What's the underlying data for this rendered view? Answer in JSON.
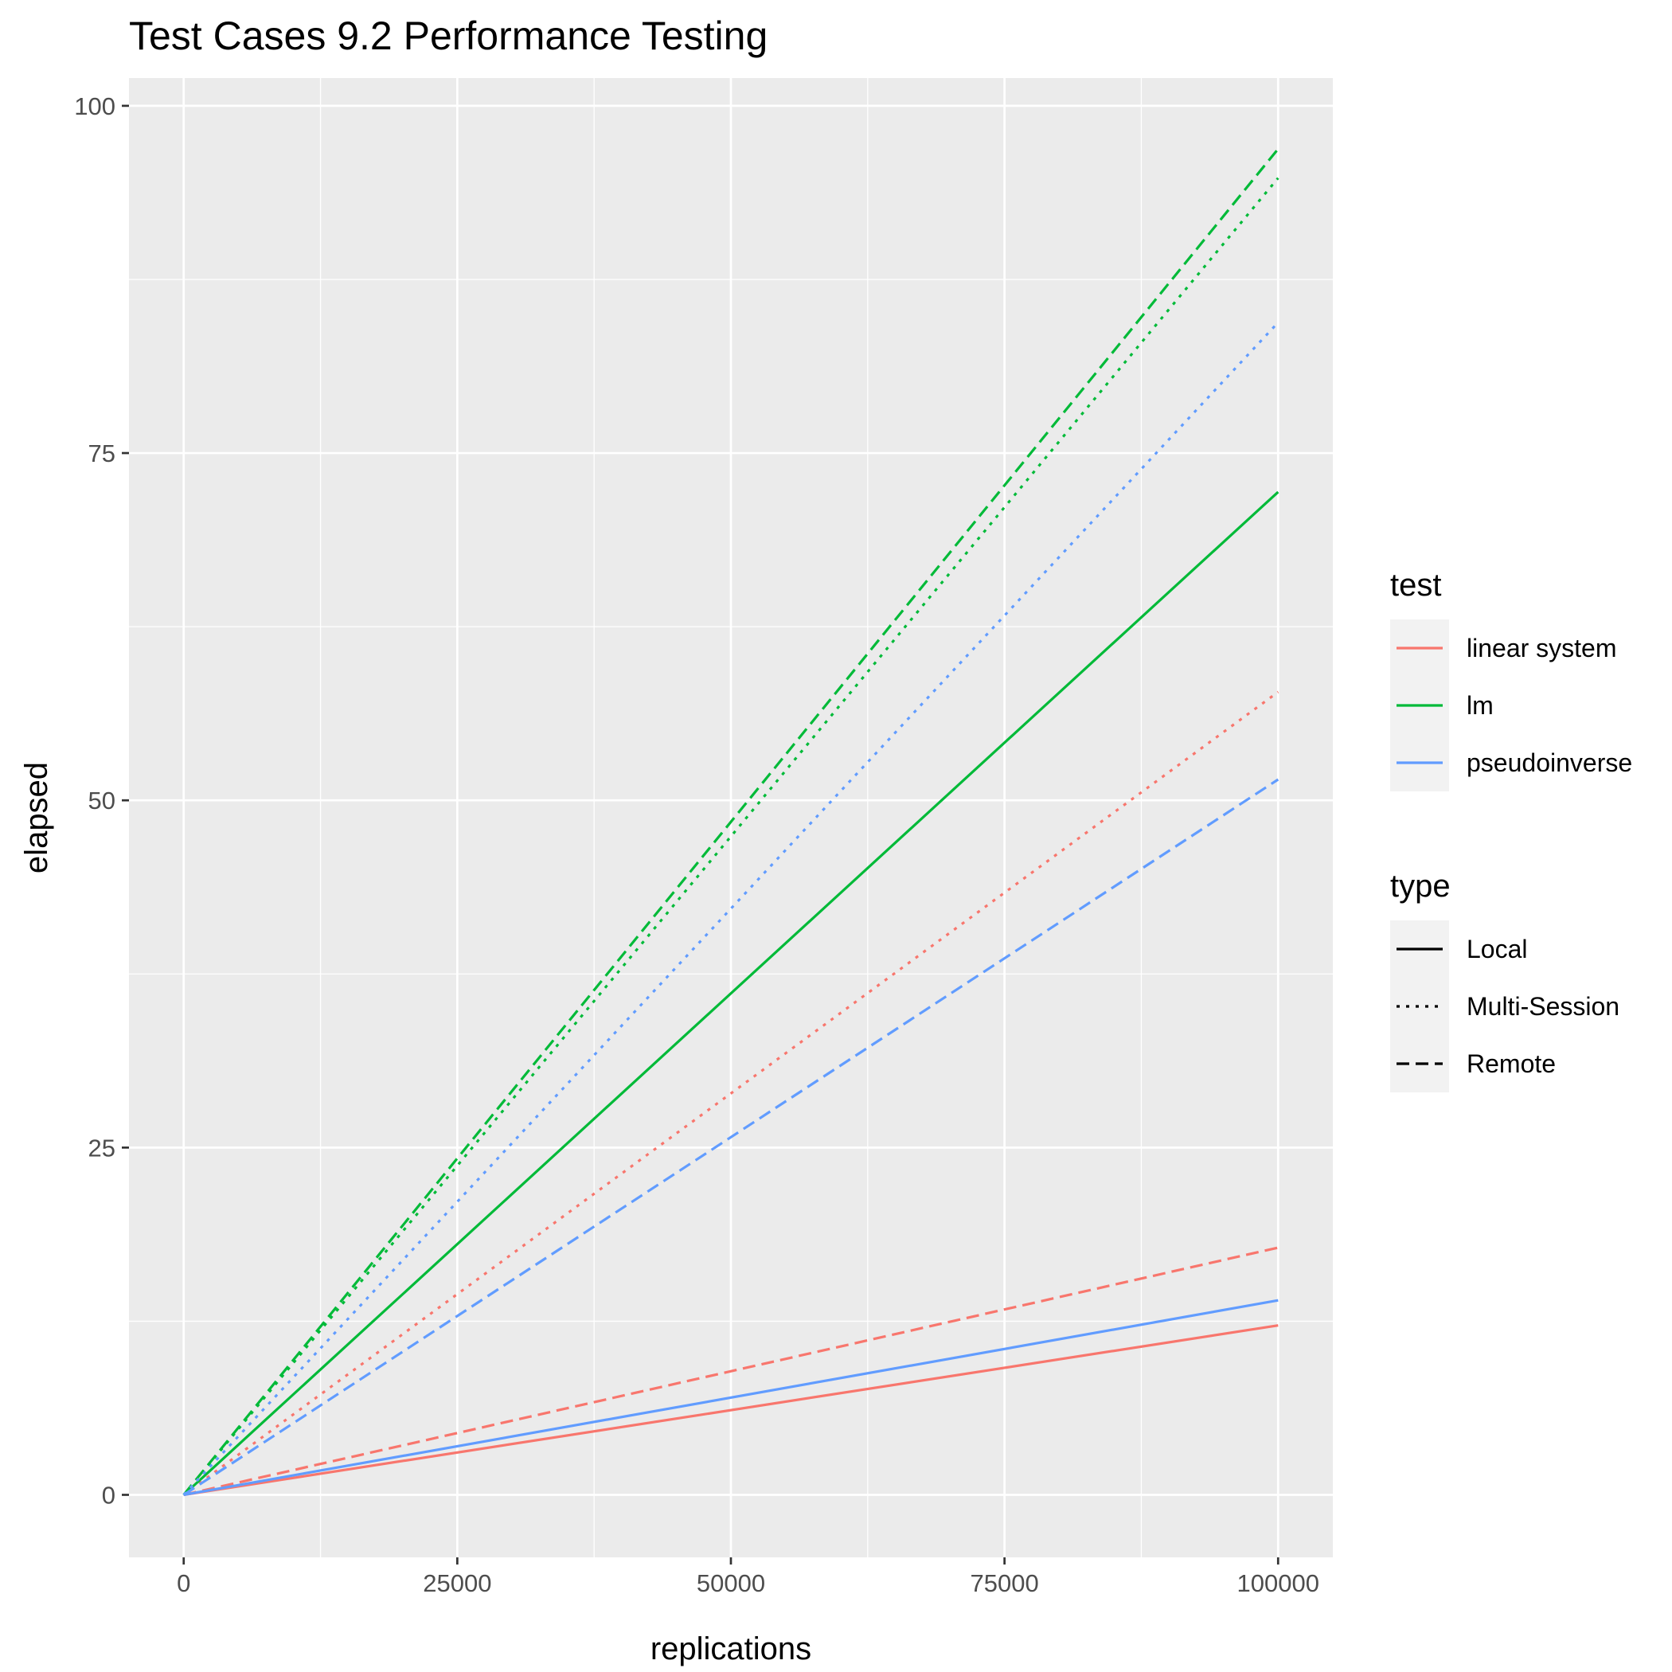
{
  "chart_data": {
    "type": "line",
    "title": "Test Cases 9.2 Performance Testing",
    "xlabel": "replications",
    "ylabel": "elapsed",
    "xlim": [
      -5000,
      105000
    ],
    "ylim": [
      -4.5,
      102
    ],
    "x_ticks": [
      0,
      25000,
      50000,
      75000,
      100000
    ],
    "x_tick_labels": [
      "0",
      "25000",
      "50000",
      "75000",
      "100000"
    ],
    "x_minor_ticks": [
      12500,
      37500,
      62500,
      87500
    ],
    "y_ticks": [
      0,
      25,
      50,
      75,
      100
    ],
    "y_tick_labels": [
      "0",
      "25",
      "50",
      "75",
      "100"
    ],
    "y_minor_ticks": [
      12.5,
      37.5,
      62.5,
      87.5
    ],
    "grid": true,
    "legend_position": "right",
    "legends": [
      {
        "title": "test",
        "kind": "color",
        "entries": [
          {
            "label": "linear system",
            "color": "#F8766D"
          },
          {
            "label": "lm",
            "color": "#00BA38"
          },
          {
            "label": "pseudoinverse",
            "color": "#619CFF"
          }
        ]
      },
      {
        "title": "type",
        "kind": "linetype",
        "entries": [
          {
            "label": "Local",
            "dash": "solid"
          },
          {
            "label": "Multi-Session",
            "dash": "dotted"
          },
          {
            "label": "Remote",
            "dash": "dashed"
          }
        ]
      }
    ],
    "series": [
      {
        "test": "linear system",
        "type": "Local",
        "color": "#F8766D",
        "dash": "solid",
        "x": [
          0,
          100000
        ],
        "y": [
          0,
          12.2
        ]
      },
      {
        "test": "linear system",
        "type": "Multi-Session",
        "color": "#F8766D",
        "dash": "dotted",
        "x": [
          0,
          100000
        ],
        "y": [
          0,
          57.8
        ]
      },
      {
        "test": "linear system",
        "type": "Remote",
        "color": "#F8766D",
        "dash": "dashed",
        "x": [
          0,
          100000
        ],
        "y": [
          0,
          17.8
        ]
      },
      {
        "test": "lm",
        "type": "Local",
        "color": "#00BA38",
        "dash": "solid",
        "x": [
          0,
          100000
        ],
        "y": [
          0,
          72.2
        ]
      },
      {
        "test": "lm",
        "type": "Multi-Session",
        "color": "#00BA38",
        "dash": "dotted",
        "x": [
          0,
          100000
        ],
        "y": [
          0,
          94.8
        ]
      },
      {
        "test": "lm",
        "type": "Remote",
        "color": "#00BA38",
        "dash": "dashed",
        "x": [
          0,
          100000
        ],
        "y": [
          0,
          96.9
        ]
      },
      {
        "test": "pseudoinverse",
        "type": "Local",
        "color": "#619CFF",
        "dash": "solid",
        "x": [
          0,
          100000
        ],
        "y": [
          0,
          14.0
        ]
      },
      {
        "test": "pseudoinverse",
        "type": "Multi-Session",
        "color": "#619CFF",
        "dash": "dotted",
        "x": [
          0,
          100000
        ],
        "y": [
          0,
          84.4
        ]
      },
      {
        "test": "pseudoinverse",
        "type": "Remote",
        "color": "#619CFF",
        "dash": "dashed",
        "x": [
          0,
          100000
        ],
        "y": [
          0,
          51.5
        ]
      }
    ]
  }
}
